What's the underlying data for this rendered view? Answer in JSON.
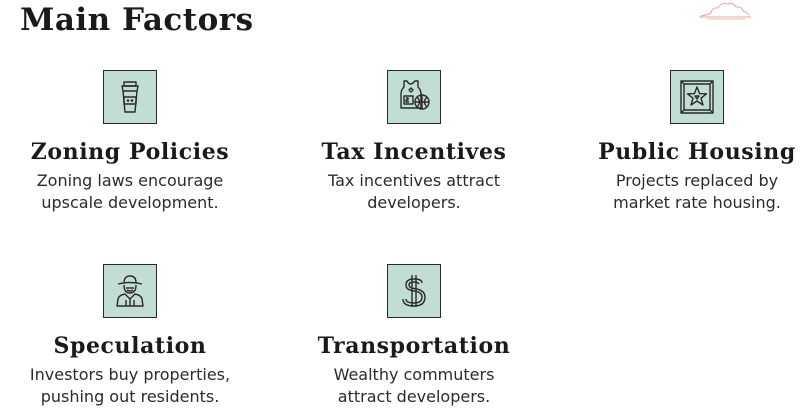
{
  "title": "Main Factors",
  "factors": [
    {
      "title": "Zoning Policies",
      "description_line1": "Zoning laws encourage",
      "description_line2": "upscale development.",
      "icon": "coffee-cup-icon"
    },
    {
      "title": "Tax Incentives",
      "description_line1": "Tax incentives attract",
      "description_line2": "developers.",
      "icon": "jersey-basketball-icon"
    },
    {
      "title": "Public Housing",
      "description_line1": "Projects replaced by",
      "description_line2": "market rate housing.",
      "icon": "star-frame-icon"
    },
    {
      "title": "Speculation",
      "description_line1": "Investors buy properties,",
      "description_line2": "pushing out residents.",
      "icon": "investor-hat-icon"
    },
    {
      "title": "Transportation",
      "description_line1": "Wealthy commuters",
      "description_line2": "attract developers.",
      "icon": "dollar-sign-icon"
    }
  ],
  "colors": {
    "icon_background": "#c2ddd5",
    "icon_stroke": "#2a2a2a",
    "decoration": "#e6a9a0"
  }
}
